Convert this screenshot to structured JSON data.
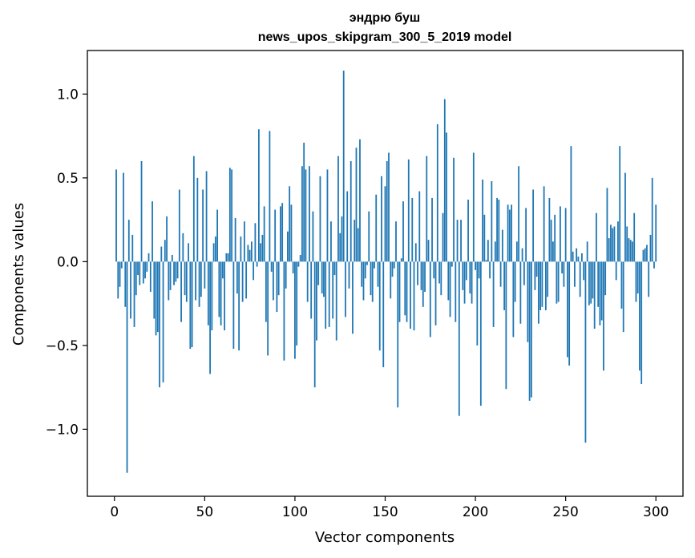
{
  "chart_data": {
    "type": "bar",
    "title": "эндрю буш",
    "subtitle": "news_upos_skipgram_300_5_2019 model",
    "xlabel": "Vector components",
    "ylabel": "Components values",
    "xlim": [
      -15,
      315
    ],
    "ylim": [
      -1.4,
      1.26
    ],
    "xticks": [
      0,
      50,
      100,
      150,
      200,
      250,
      300
    ],
    "xtick_labels": [
      "0",
      "50",
      "100",
      "150",
      "200",
      "250",
      "300"
    ],
    "yticks": [
      -1.0,
      -0.5,
      0.0,
      0.5,
      1.0
    ],
    "ytick_labels": [
      "−1.0",
      "−0.5",
      "0.0",
      "0.5",
      "1.0"
    ],
    "grid": false,
    "bar_color": "#1f77b4",
    "x": [
      1,
      2,
      3,
      4,
      5,
      6,
      7,
      8,
      9,
      10,
      11,
      12,
      13,
      14,
      15,
      16,
      17,
      18,
      19,
      20,
      21,
      22,
      23,
      24,
      25,
      26,
      27,
      28,
      29,
      30,
      31,
      32,
      33,
      34,
      35,
      36,
      37,
      38,
      39,
      40,
      41,
      42,
      43,
      44,
      45,
      46,
      47,
      48,
      49,
      50,
      51,
      52,
      53,
      54,
      55,
      56,
      57,
      58,
      59,
      60,
      61,
      62,
      63,
      64,
      65,
      66,
      67,
      68,
      69,
      70,
      71,
      72,
      73,
      74,
      75,
      76,
      77,
      78,
      79,
      80,
      81,
      82,
      83,
      84,
      85,
      86,
      87,
      88,
      89,
      90,
      91,
      92,
      93,
      94,
      95,
      96,
      97,
      98,
      99,
      100,
      101,
      102,
      103,
      104,
      105,
      106,
      107,
      108,
      109,
      110,
      111,
      112,
      113,
      114,
      115,
      116,
      117,
      118,
      119,
      120,
      121,
      122,
      123,
      124,
      125,
      126,
      127,
      128,
      129,
      130,
      131,
      132,
      133,
      134,
      135,
      136,
      137,
      138,
      139,
      140,
      141,
      142,
      143,
      144,
      145,
      146,
      147,
      148,
      149,
      150,
      151,
      152,
      153,
      154,
      155,
      156,
      157,
      158,
      159,
      160,
      161,
      162,
      163,
      164,
      165,
      166,
      167,
      168,
      169,
      170,
      171,
      172,
      173,
      174,
      175,
      176,
      177,
      178,
      179,
      180,
      181,
      182,
      183,
      184,
      185,
      186,
      187,
      188,
      189,
      190,
      191,
      192,
      193,
      194,
      195,
      196,
      197,
      198,
      199,
      200,
      201,
      202,
      203,
      204,
      205,
      206,
      207,
      208,
      209,
      210,
      211,
      212,
      213,
      214,
      215,
      216,
      217,
      218,
      219,
      220,
      221,
      222,
      223,
      224,
      225,
      226,
      227,
      228,
      229,
      230,
      231,
      232,
      233,
      234,
      235,
      236,
      237,
      238,
      239,
      240,
      241,
      242,
      243,
      244,
      245,
      246,
      247,
      248,
      249,
      250,
      251,
      252,
      253,
      254,
      255,
      256,
      257,
      258,
      259,
      260,
      261,
      262,
      263,
      264,
      265,
      266,
      267,
      268,
      269,
      270,
      271,
      272,
      273,
      274,
      275,
      276,
      277,
      278,
      279,
      280,
      281,
      282,
      283,
      284,
      285,
      286,
      287,
      288,
      289,
      290,
      291,
      292,
      293,
      294,
      295,
      296,
      297,
      298,
      299,
      300
    ],
    "values": [
      0.55,
      -0.22,
      -0.15,
      -0.04,
      0.53,
      -0.27,
      -1.26,
      0.25,
      -0.34,
      0.16,
      -0.39,
      -0.2,
      -0.08,
      -0.14,
      0.6,
      -0.13,
      -0.1,
      -0.06,
      0.05,
      -0.18,
      0.36,
      -0.34,
      -0.44,
      -0.42,
      -0.75,
      0.09,
      -0.72,
      0.13,
      0.27,
      -0.23,
      -0.17,
      0.04,
      -0.14,
      -0.12,
      -0.1,
      0.43,
      -0.36,
      0.17,
      -0.2,
      -0.24,
      0.11,
      -0.52,
      -0.51,
      0.63,
      -0.23,
      0.5,
      -0.27,
      -0.21,
      0.43,
      -0.16,
      0.54,
      -0.38,
      -0.67,
      -0.41,
      0.11,
      0.15,
      0.31,
      -0.33,
      -0.38,
      -0.1,
      -0.41,
      0.05,
      0.05,
      0.56,
      0.55,
      -0.52,
      0.26,
      -0.19,
      -0.53,
      0.15,
      -0.24,
      0.24,
      -0.22,
      0.1,
      0.07,
      0.12,
      -0.11,
      0.23,
      -0.03,
      0.79,
      0.11,
      0.16,
      0.33,
      -0.36,
      -0.56,
      0.78,
      -0.06,
      -0.23,
      0.31,
      -0.3,
      -0.2,
      0.33,
      0.35,
      -0.59,
      -0.16,
      0.18,
      0.45,
      0.34,
      -0.07,
      -0.58,
      -0.5,
      -0.03,
      0.04,
      0.57,
      0.71,
      0.55,
      -0.24,
      0.57,
      -0.34,
      0.3,
      -0.75,
      -0.47,
      -0.14,
      0.51,
      -0.19,
      -0.21,
      -0.4,
      0.55,
      -0.39,
      0.24,
      -0.34,
      -0.08,
      -0.47,
      0.63,
      0.17,
      0.27,
      1.14,
      -0.33,
      0.42,
      -0.16,
      0.6,
      -0.43,
      0.25,
      0.68,
      0.2,
      0.73,
      -0.15,
      -0.23,
      -0.1,
      -0.02,
      0.3,
      -0.2,
      -0.24,
      -0.04,
      0.4,
      -0.15,
      -0.53,
      0.51,
      -0.63,
      0.45,
      0.6,
      0.65,
      -0.22,
      -0.09,
      -0.04,
      0.24,
      -0.87,
      -0.36,
      0.02,
      0.36,
      -0.32,
      -0.36,
      0.61,
      -0.4,
      0.38,
      -0.41,
      0.11,
      -0.14,
      0.42,
      -0.17,
      -0.27,
      -0.18,
      0.63,
      0.13,
      -0.45,
      0.38,
      -0.1,
      -0.38,
      0.82,
      -0.13,
      -0.2,
      0.29,
      0.97,
      0.77,
      -0.23,
      -0.33,
      -0.03,
      0.62,
      -0.36,
      0.25,
      -0.92,
      0.25,
      -0.17,
      -0.25,
      -0.11,
      0.37,
      -0.19,
      -0.25,
      0.65,
      -0.05,
      -0.5,
      -0.1,
      -0.86,
      0.49,
      0.28,
      0.01,
      0.13,
      -0.1,
      0.48,
      -0.39,
      0.12,
      0.38,
      0.37,
      -0.15,
      0.19,
      -0.29,
      -0.76,
      0.34,
      0.31,
      0.34,
      -0.45,
      -0.24,
      0.12,
      0.57,
      -0.37,
      0.08,
      -0.14,
      0.32,
      -0.48,
      -0.83,
      -0.81,
      0.43,
      -0.17,
      -0.09,
      -0.37,
      -0.29,
      -0.27,
      0.45,
      -0.29,
      -0.21,
      0.38,
      0.25,
      0.12,
      0.28,
      -0.25,
      -0.24,
      0.33,
      -0.07,
      -0.15,
      0.32,
      -0.57,
      -0.62,
      0.69,
      0.06,
      -0.15,
      0.08,
      0.03,
      -0.21,
      0.05,
      -0.11,
      -1.08,
      0.12,
      -0.26,
      -0.25,
      -0.22,
      -0.4,
      0.29,
      -0.27,
      -0.38,
      -0.35,
      -0.65,
      -0.2,
      0.44,
      0.14,
      0.22,
      0.2,
      0.21,
      -0.11,
      0.24,
      0.69,
      -0.28,
      -0.42,
      0.53,
      0.21,
      0.14,
      0.13,
      0.12,
      0.29,
      -0.24,
      -0.19,
      -0.65,
      -0.73,
      0.07,
      0.08,
      0.1,
      -0.21,
      0.16,
      0.5,
      -0.04,
      0.34
    ]
  }
}
